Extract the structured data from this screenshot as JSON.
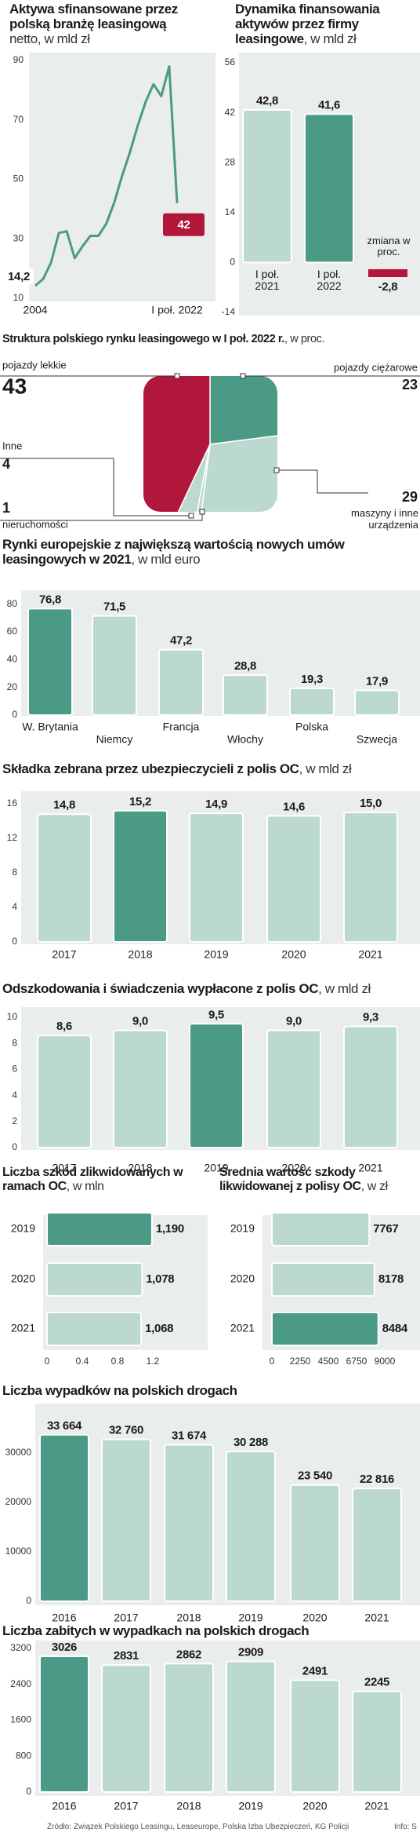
{
  "chart_data": [
    {
      "type": "line",
      "title": "Aktywa sfinansowane przez polską branżę leasingową",
      "subtitle": "netto, w mld zł",
      "categories": [
        "2004",
        null,
        null,
        null,
        null,
        null,
        null,
        null,
        null,
        null,
        null,
        null,
        null,
        null,
        null,
        null,
        null,
        null,
        "I poł. 2022"
      ],
      "values": [
        14.2,
        16.5,
        22,
        32,
        32.5,
        23.5,
        27.5,
        31,
        31,
        35,
        42,
        51,
        59,
        68,
        76,
        82,
        78,
        88,
        42
      ],
      "value_labels": [
        "14,2",
        null,
        null,
        null,
        null,
        null,
        null,
        null,
        null,
        null,
        null,
        null,
        null,
        null,
        null,
        null,
        null,
        null,
        "42"
      ],
      "color": "#4a9a86",
      "highlight_color": "#b0173a",
      "ylim": [
        10,
        90
      ],
      "yticks": [
        10,
        30,
        50,
        70,
        90
      ]
    },
    {
      "type": "bar",
      "title": "Dynamika finansowania aktywów przez firmy leasingowe",
      "subtitle": ", w mld zł",
      "categories": [
        "I poł. 2021",
        "I poł. 2022"
      ],
      "values": [
        42.8,
        41.6
      ],
      "value_labels": [
        "42,8",
        "41,6"
      ],
      "colors": [
        "#bcd9cf",
        "#4a9a86"
      ],
      "ylim": [
        -14,
        56
      ],
      "yticks": [
        -14,
        0,
        14,
        28,
        42,
        56
      ],
      "change": {
        "label": "zmiana w proc.",
        "value_label": "-2,8",
        "color": "#b0173a"
      }
    },
    {
      "type": "pie",
      "title": "Struktura polskiego rynku leasingowego w I poł. 2022 r.",
      "subtitle": ", w proc.",
      "categories": [
        "pojazdy ciężarowe",
        "maszyny i inne urządzenia",
        "nieruchomości",
        "Inne",
        "pojazdy lekkie"
      ],
      "values": [
        23,
        29,
        1,
        4,
        43
      ],
      "colors": [
        "#4a9a86",
        "#bcd9cf",
        "#bcd9cf",
        "#bcd9cf",
        "#b0173a"
      ]
    },
    {
      "type": "bar",
      "title": "Rynki europejskie z największą wartością nowych umów leasingowych w 2021",
      "subtitle": ", w mld euro",
      "categories": [
        "W. Brytania",
        "Niemcy",
        "Francja",
        "Włochy",
        "Polska",
        "Szwecja"
      ],
      "values": [
        76.8,
        71.5,
        47.2,
        28.8,
        19.3,
        17.9
      ],
      "value_labels": [
        "76,8",
        "71,5",
        "47,2",
        "28,8",
        "19,3",
        "17,9"
      ],
      "colors": [
        "#4a9a86",
        "#bcd9cf",
        "#bcd9cf",
        "#bcd9cf",
        "#bcd9cf",
        "#bcd9cf"
      ],
      "ylim": [
        0,
        90
      ],
      "yticks": [
        0,
        20,
        40,
        60,
        80
      ]
    },
    {
      "type": "bar",
      "title": "Składka zebrana przez ubezpieczycieli z polis OC",
      "subtitle": ", w mld zł",
      "categories": [
        "2017",
        "2018",
        "2019",
        "2020",
        "2021"
      ],
      "values": [
        14.8,
        15.2,
        14.9,
        14.6,
        15.0
      ],
      "value_labels": [
        "14,8",
        "15,2",
        "14,9",
        "14,6",
        "15,0"
      ],
      "colors": [
        "#bcd9cf",
        "#4a9a86",
        "#bcd9cf",
        "#bcd9cf",
        "#bcd9cf"
      ],
      "ylim": [
        0,
        16
      ],
      "yticks": [
        0,
        4,
        8,
        12,
        16
      ]
    },
    {
      "type": "bar",
      "title": "Odszkodowania i świadczenia wypłacone z polis OC",
      "subtitle": ", w mld zł",
      "categories": [
        "2017",
        "2018",
        "2019",
        "2020",
        "2021"
      ],
      "values": [
        8.6,
        9.0,
        9.5,
        9.0,
        9.3
      ],
      "value_labels": [
        "8,6",
        "9,0",
        "9,5",
        "9,0",
        "9,3"
      ],
      "colors": [
        "#bcd9cf",
        "#bcd9cf",
        "#4a9a86",
        "#bcd9cf",
        "#bcd9cf"
      ],
      "ylim": [
        0,
        10
      ],
      "yticks": [
        0,
        2,
        4,
        6,
        8,
        10
      ]
    },
    {
      "type": "hbar",
      "title": "Liczba szkód zlikwidowanych w ramach OC",
      "subtitle": ", w mln",
      "categories": [
        "2019",
        "2020",
        "2021"
      ],
      "values": [
        1.19,
        1.078,
        1.068
      ],
      "value_labels": [
        "1,190",
        "1,078",
        "1,068"
      ],
      "colors": [
        "#4a9a86",
        "#bcd9cf",
        "#bcd9cf"
      ],
      "xlim": [
        0,
        1.2
      ],
      "xticks": [
        0,
        0.4,
        0.8,
        1.2
      ]
    },
    {
      "type": "hbar",
      "title": "Średnia wartość szkody likwidowanej z polisy OC",
      "subtitle": ", w zł",
      "categories": [
        "2019",
        "2020",
        "2021"
      ],
      "values": [
        7767,
        8178,
        8484
      ],
      "colors": [
        "#bcd9cf",
        "#bcd9cf",
        "#4a9a86"
      ],
      "xlim": [
        0,
        9000
      ],
      "xticks": [
        0,
        2250,
        4500,
        6750,
        9000
      ]
    },
    {
      "type": "bar",
      "title": "Liczba wypadków na polskich drogach",
      "categories": [
        "2016",
        "2017",
        "2018",
        "2019",
        "2020",
        "2021"
      ],
      "values": [
        33664,
        32760,
        31674,
        30288,
        23540,
        22816
      ],
      "value_labels": [
        "33 664",
        "32 760",
        "31 674",
        "30 288",
        "23 540",
        "22 816"
      ],
      "colors": [
        "#4a9a86",
        "#bcd9cf",
        "#bcd9cf",
        "#bcd9cf",
        "#bcd9cf",
        "#bcd9cf"
      ],
      "ylim": [
        0,
        40000
      ],
      "yticks": [
        0,
        10000,
        20000,
        30000
      ]
    },
    {
      "type": "bar",
      "title": "Liczba zabitych w wypadkach na polskich drogach",
      "categories": [
        "2016",
        "2017",
        "2018",
        "2019",
        "2020",
        "2021"
      ],
      "values": [
        3026,
        2831,
        2862,
        2909,
        2491,
        2245
      ],
      "colors": [
        "#4a9a86",
        "#bcd9cf",
        "#bcd9cf",
        "#bcd9cf",
        "#bcd9cf",
        "#bcd9cf"
      ],
      "ylim": [
        0,
        3200
      ],
      "yticks": [
        0,
        800,
        1600,
        2400,
        3200
      ]
    }
  ],
  "source": "Źródło: Związek Polskiego Leasingu, Leaseurope, Polska Izba Ubezpieczeń, KG Policji",
  "credit": "Info: S"
}
